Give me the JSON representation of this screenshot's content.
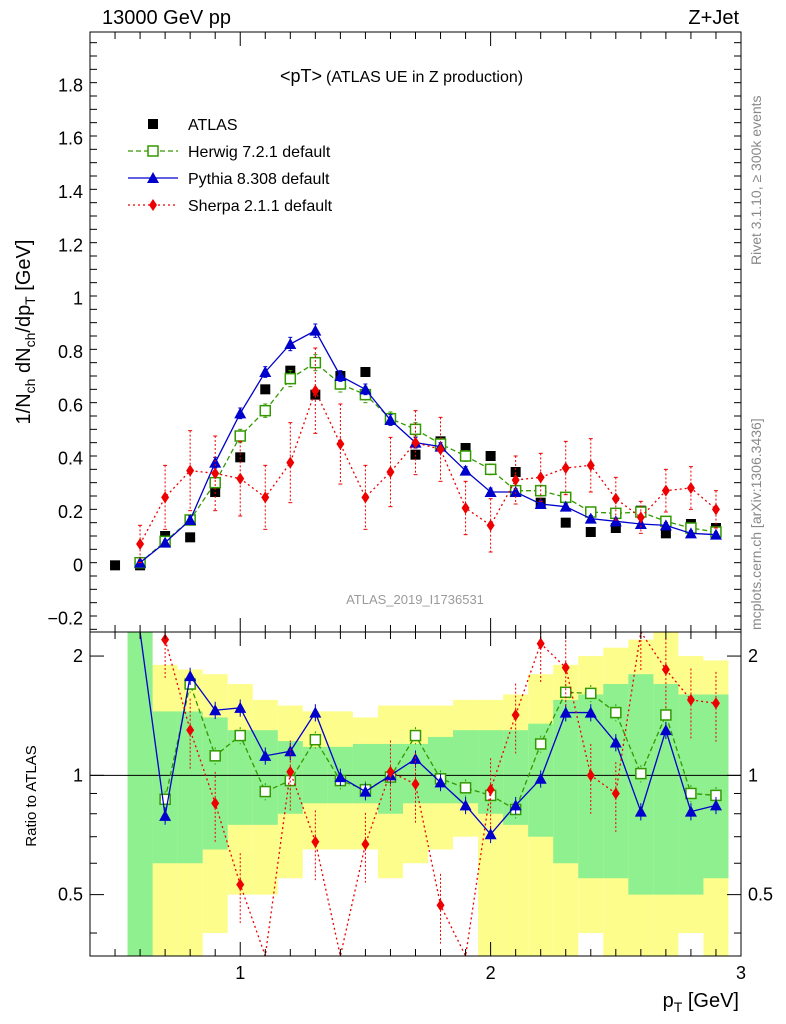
{
  "header": {
    "left": "13000 GeV pp",
    "right": "Z+Jet"
  },
  "plot_title_main": "<pT>",
  "plot_title_sub": "(ATLAS UE in Z production)",
  "watermark": "ATLAS_2019_I1736531",
  "side_text_top": "Rivet 3.1.10, ≥ 300k events",
  "side_text_bottom": "mcplots.cern.ch [arXiv:1306.3436]",
  "colors": {
    "atlas": "#000000",
    "herwig": "#339900",
    "pythia": "#0000cc",
    "sherpa": "#ee0000",
    "band_inner": "#8ef08e",
    "band_outer": "#fdfd8c"
  },
  "chart_data": {
    "type": "scatter",
    "xlabel": "p_T [GeV]",
    "ylabel": "1/N_ch dN_ch/dp_T [GeV]",
    "ratio_ylabel": "Ratio to ATLAS",
    "xlim": [
      0.4,
      3.0
    ],
    "ylim": [
      -0.25,
      2.0
    ],
    "ratio_ylim": [
      0.35,
      2.3
    ],
    "x_ticks": [
      1,
      2,
      3
    ],
    "y_ticks": [
      -0.2,
      0,
      0.2,
      0.4,
      0.6,
      0.8,
      1,
      1.2,
      1.4,
      1.6,
      1.8
    ],
    "ratio_ticks": [
      0.5,
      1,
      2
    ],
    "legend_position": "top-left",
    "x": [
      0.5,
      0.6,
      0.7,
      0.8,
      0.9,
      1.0,
      1.1,
      1.2,
      1.3,
      1.4,
      1.5,
      1.6,
      1.7,
      1.8,
      1.9,
      2.0,
      2.1,
      2.2,
      2.3,
      2.4,
      2.5,
      2.6,
      2.7,
      2.8,
      2.9
    ],
    "series": [
      {
        "name": "ATLAS",
        "values": [
          0.0,
          0.0,
          0.11,
          0.105,
          0.275,
          0.405,
          0.66,
          0.73,
          0.64,
          0.71,
          0.725,
          0.55,
          0.415,
          0.465,
          0.44,
          0.41,
          0.35,
          0.235,
          0.16,
          0.125,
          0.14,
          0.205,
          0.12,
          0.155,
          0.14
        ]
      },
      {
        "name": "Herwig 7.2.1 default",
        "values": [
          null,
          0.01,
          0.09,
          0.17,
          0.31,
          0.485,
          0.58,
          0.7,
          0.76,
          0.68,
          0.64,
          0.55,
          0.51,
          0.455,
          0.41,
          0.36,
          0.28,
          0.28,
          0.255,
          0.2,
          0.195,
          0.2,
          0.165,
          0.14,
          0.125
        ]
      },
      {
        "name": "Pythia 8.308 default",
        "values": [
          null,
          0.01,
          0.085,
          0.17,
          0.385,
          0.57,
          0.725,
          0.83,
          0.88,
          0.71,
          0.66,
          0.545,
          0.46,
          0.445,
          0.355,
          0.275,
          0.275,
          0.23,
          0.22,
          0.175,
          0.165,
          0.155,
          0.15,
          0.12,
          0.115
        ]
      },
      {
        "name": "Sherpa 2.1.1 default",
        "values": [
          null,
          0.08,
          0.255,
          0.355,
          0.345,
          0.325,
          0.255,
          0.385,
          0.655,
          0.455,
          0.255,
          0.35,
          0.46,
          0.435,
          0.215,
          0.15,
          0.32,
          0.33,
          0.365,
          0.375,
          0.25,
          0.18,
          0.28,
          0.29,
          0.21
        ]
      }
    ],
    "errors": {
      "Herwig 7.2.1 default": [
        0,
        0.01,
        0.01,
        0.015,
        0.02,
        0.025,
        0.025,
        0.03,
        0.03,
        0.03,
        0.03,
        0.025,
        0.025,
        0.02,
        0.02,
        0.02,
        0.02,
        0.02,
        0.015,
        0.015,
        0.015,
        0.015,
        0.012,
        0.012,
        0.012
      ],
      "Pythia 8.308 default": [
        0,
        0.01,
        0.01,
        0.015,
        0.02,
        0.02,
        0.02,
        0.025,
        0.025,
        0.02,
        0.02,
        0.02,
        0.02,
        0.015,
        0.015,
        0.015,
        0.012,
        0.012,
        0.012,
        0.012,
        0.012,
        0.01,
        0.01,
        0.01,
        0.01
      ],
      "Sherpa 2.1.1 default": [
        0,
        0.07,
        0.12,
        0.15,
        0.14,
        0.14,
        0.12,
        0.15,
        0.16,
        0.15,
        0.12,
        0.13,
        0.12,
        0.12,
        0.1,
        0.1,
        0.09,
        0.09,
        0.1,
        0.1,
        0.08,
        0.06,
        0.08,
        0.08,
        0.07
      ]
    },
    "ratios": {
      "Herwig 7.2.1 default": [
        null,
        null,
        0.87,
        1.7,
        1.12,
        1.26,
        0.91,
        0.97,
        1.23,
        0.97,
        0.92,
        0.99,
        1.26,
        0.98,
        0.93,
        0.89,
        0.82,
        1.2,
        1.62,
        1.61,
        1.44,
        1.01,
        1.42,
        0.9,
        0.89
      ],
      "Pythia 8.308 default": [
        null,
        null,
        0.79,
        1.78,
        1.46,
        1.48,
        1.12,
        1.15,
        1.44,
        0.99,
        0.91,
        1.0,
        1.1,
        0.96,
        0.84,
        0.71,
        0.84,
        0.98,
        1.44,
        1.44,
        1.21,
        0.81,
        1.3,
        0.81,
        0.84
      ],
      "Sherpa 2.1.1 default": [
        null,
        null,
        2.2,
        1.3,
        0.85,
        0.53,
        0.3,
        1.02,
        0.68,
        0.3,
        0.67,
        1.02,
        0.95,
        0.47,
        0.3,
        0.92,
        1.42,
        2.15,
        1.87,
        1.0,
        0.9,
        2.3,
        1.85,
        1.55,
        1.52
      ]
    },
    "ratio_band_outer": [
      [
        0.35,
        2.3
      ],
      [
        0.35,
        1.9
      ],
      [
        0.35,
        1.85
      ],
      [
        0.4,
        1.8
      ],
      [
        0.5,
        1.7
      ],
      [
        0.5,
        1.55
      ],
      [
        0.55,
        1.5
      ],
      [
        0.65,
        1.45
      ],
      [
        0.65,
        1.45
      ],
      [
        0.65,
        1.4
      ],
      [
        0.55,
        1.5
      ],
      [
        0.6,
        1.5
      ],
      [
        0.65,
        1.5
      ],
      [
        0.7,
        1.55
      ],
      [
        0.35,
        1.55
      ],
      [
        0.35,
        1.6
      ],
      [
        0.35,
        1.8
      ],
      [
        0.35,
        1.9
      ],
      [
        0.4,
        2.0
      ],
      [
        0.35,
        2.1
      ],
      [
        0.35,
        2.2
      ],
      [
        0.35,
        2.3
      ],
      [
        0.4,
        2.0
      ],
      [
        0.35,
        1.95
      ]
    ],
    "ratio_band_inner": [
      [
        0.35,
        2.3
      ],
      [
        0.6,
        1.45
      ],
      [
        0.6,
        1.45
      ],
      [
        0.65,
        1.4
      ],
      [
        0.75,
        1.3
      ],
      [
        0.75,
        1.3
      ],
      [
        0.8,
        1.22
      ],
      [
        0.85,
        1.18
      ],
      [
        0.85,
        1.18
      ],
      [
        0.85,
        1.2
      ],
      [
        0.8,
        1.2
      ],
      [
        0.85,
        1.2
      ],
      [
        0.85,
        1.25
      ],
      [
        0.85,
        1.3
      ],
      [
        0.8,
        1.3
      ],
      [
        0.75,
        1.3
      ],
      [
        0.7,
        1.35
      ],
      [
        0.6,
        1.55
      ],
      [
        0.55,
        1.6
      ],
      [
        0.55,
        1.7
      ],
      [
        0.5,
        1.8
      ],
      [
        0.5,
        1.7
      ],
      [
        0.5,
        1.6
      ],
      [
        0.55,
        1.6
      ]
    ]
  }
}
